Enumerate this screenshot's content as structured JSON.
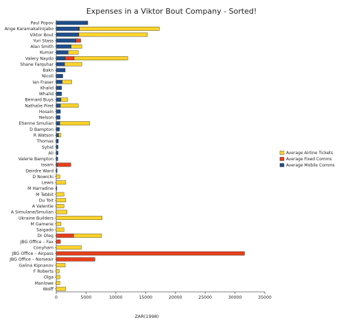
{
  "chart_data": {
    "type": "bar",
    "orientation": "horizontal",
    "stacked": true,
    "title": "Expenses in a Viktor Bout Company - Sorted!",
    "xlabel": "ZAR(1998)",
    "ylabel": "",
    "xlim": [
      0,
      35000
    ],
    "xticks": [
      0,
      5000,
      10000,
      15000,
      20000,
      25000,
      30000,
      35000
    ],
    "grid": false,
    "legend_position": "right",
    "categories": [
      "Paul Popov",
      "Ange Karamakalinijabo",
      "Viktor Bout",
      "Yuri Stass",
      "Alan Smith",
      "Kumar",
      "Valery Naydo",
      "Shane Farquhar",
      "Bakn",
      "Nicoli",
      "Ian Fraser",
      "Khalid",
      "Whalid",
      "Bernard Buys",
      "Nathalie Piret",
      "Hosain",
      "Nelson",
      "Etienne Smulian",
      "D Bampton",
      "R Watson",
      "Thomas",
      "Syhid",
      "Ali",
      "Valerie Bampton",
      "Issam",
      "Deirdre Ward",
      "D Nowicki",
      "Lewis",
      "M Harradine",
      "M Tebbit",
      "Du Toit",
      "A Valentie",
      "A Simulane/Smulian",
      "Ukraine Builders",
      "M Gamene",
      "Saigado",
      "Dr Oleg",
      "JBG Office – Fax",
      "Conyham",
      "JBG Office – Airpass",
      "JBG Office – Norseair",
      "Galina Kipnanov",
      "F Roberts",
      "Olga",
      "Manlowe",
      "Wolff"
    ],
    "series": [
      {
        "name": "Average Mobile Comms",
        "color": "#1f4e8c",
        "values": [
          5200,
          3800,
          3700,
          3300,
          2500,
          2000,
          1500,
          1400,
          1500,
          1100,
          1000,
          900,
          900,
          800,
          700,
          700,
          650,
          600,
          550,
          400,
          350,
          300,
          300,
          250,
          150,
          150,
          0,
          0,
          100,
          0,
          0,
          0,
          0,
          0,
          0,
          0,
          0,
          0,
          0,
          0,
          0,
          0,
          0,
          0,
          0,
          0
        ]
      },
      {
        "name": "Average Fixed Comms",
        "color": "#e8401c",
        "values": [
          100,
          100,
          100,
          800,
          0,
          0,
          1500,
          0,
          0,
          0,
          0,
          0,
          0,
          0,
          0,
          0,
          0,
          0,
          0,
          0,
          0,
          0,
          0,
          0,
          2300,
          0,
          0,
          0,
          0,
          0,
          0,
          0,
          0,
          0,
          0,
          0,
          2900,
          700,
          0,
          31600,
          6500,
          0,
          0,
          0,
          0,
          0
        ]
      },
      {
        "name": "Average Airline Tickets",
        "color": "#ffd42a",
        "values": [
          0,
          13400,
          11500,
          0,
          1800,
          1700,
          9000,
          2900,
          0,
          0,
          1600,
          0,
          0,
          1100,
          3000,
          0,
          0,
          5000,
          0,
          400,
          0,
          0,
          0,
          0,
          0,
          0,
          600,
          1600,
          0,
          1300,
          1600,
          1300,
          1800,
          7700,
          800,
          1300,
          4700,
          0,
          4200,
          0,
          0,
          1500,
          500,
          600,
          600,
          1600
        ]
      }
    ]
  }
}
